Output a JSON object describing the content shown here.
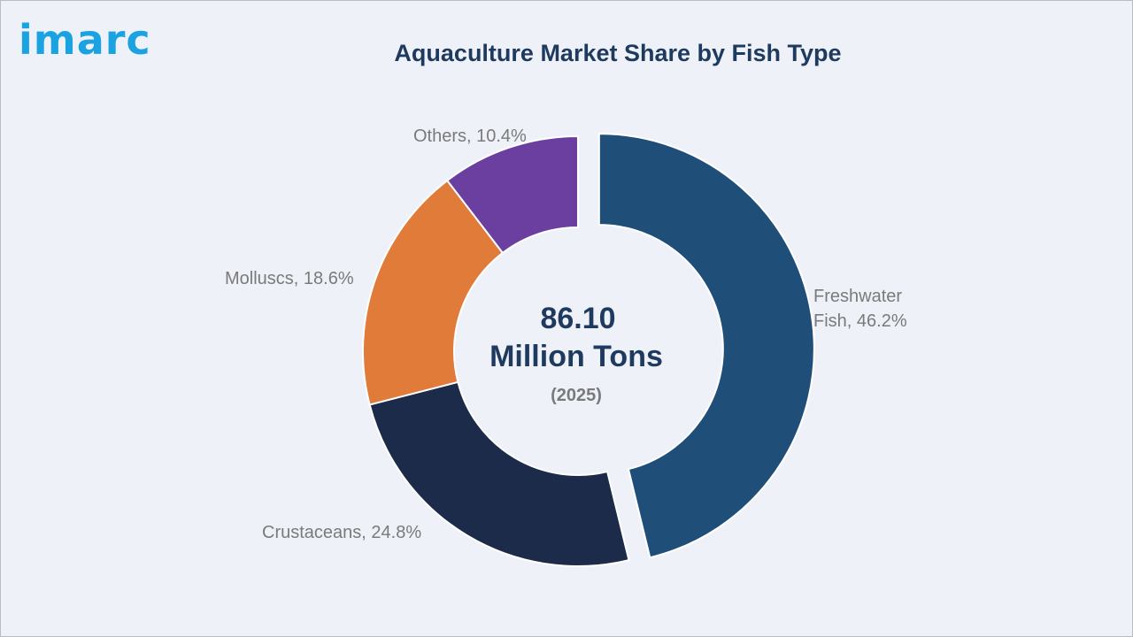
{
  "brand": {
    "logo_text": "imarc",
    "logo_color": "#1aa3e0"
  },
  "header": {
    "title": "Aquaculture Market Share by Fish Type"
  },
  "center": {
    "value": "86.10",
    "unit": "Million Tons",
    "year": "(2025)"
  },
  "chart_data": {
    "type": "pie",
    "variant": "donut",
    "title": "Aquaculture Market Share by Fish Type",
    "unit": "%",
    "slices": [
      {
        "label_lines": [
          "Freshwater",
          "Fish, 46.2%"
        ],
        "name": "Freshwater Fish",
        "value": 46.2,
        "color": "#1f4e79",
        "exploded": true
      },
      {
        "label_lines": [
          "Crustaceans, 24.8%"
        ],
        "name": "Crustaceans",
        "value": 24.8,
        "color": "#1c2b4a",
        "exploded": false
      },
      {
        "label_lines": [
          "Molluscs, 18.6%"
        ],
        "name": "Molluscs",
        "value": 18.6,
        "color": "#e07b39",
        "exploded": false
      },
      {
        "label_lines": [
          "Others, 10.4%"
        ],
        "name": "Others",
        "value": 10.4,
        "color": "#6b3fa0",
        "exploded": false
      }
    ]
  }
}
